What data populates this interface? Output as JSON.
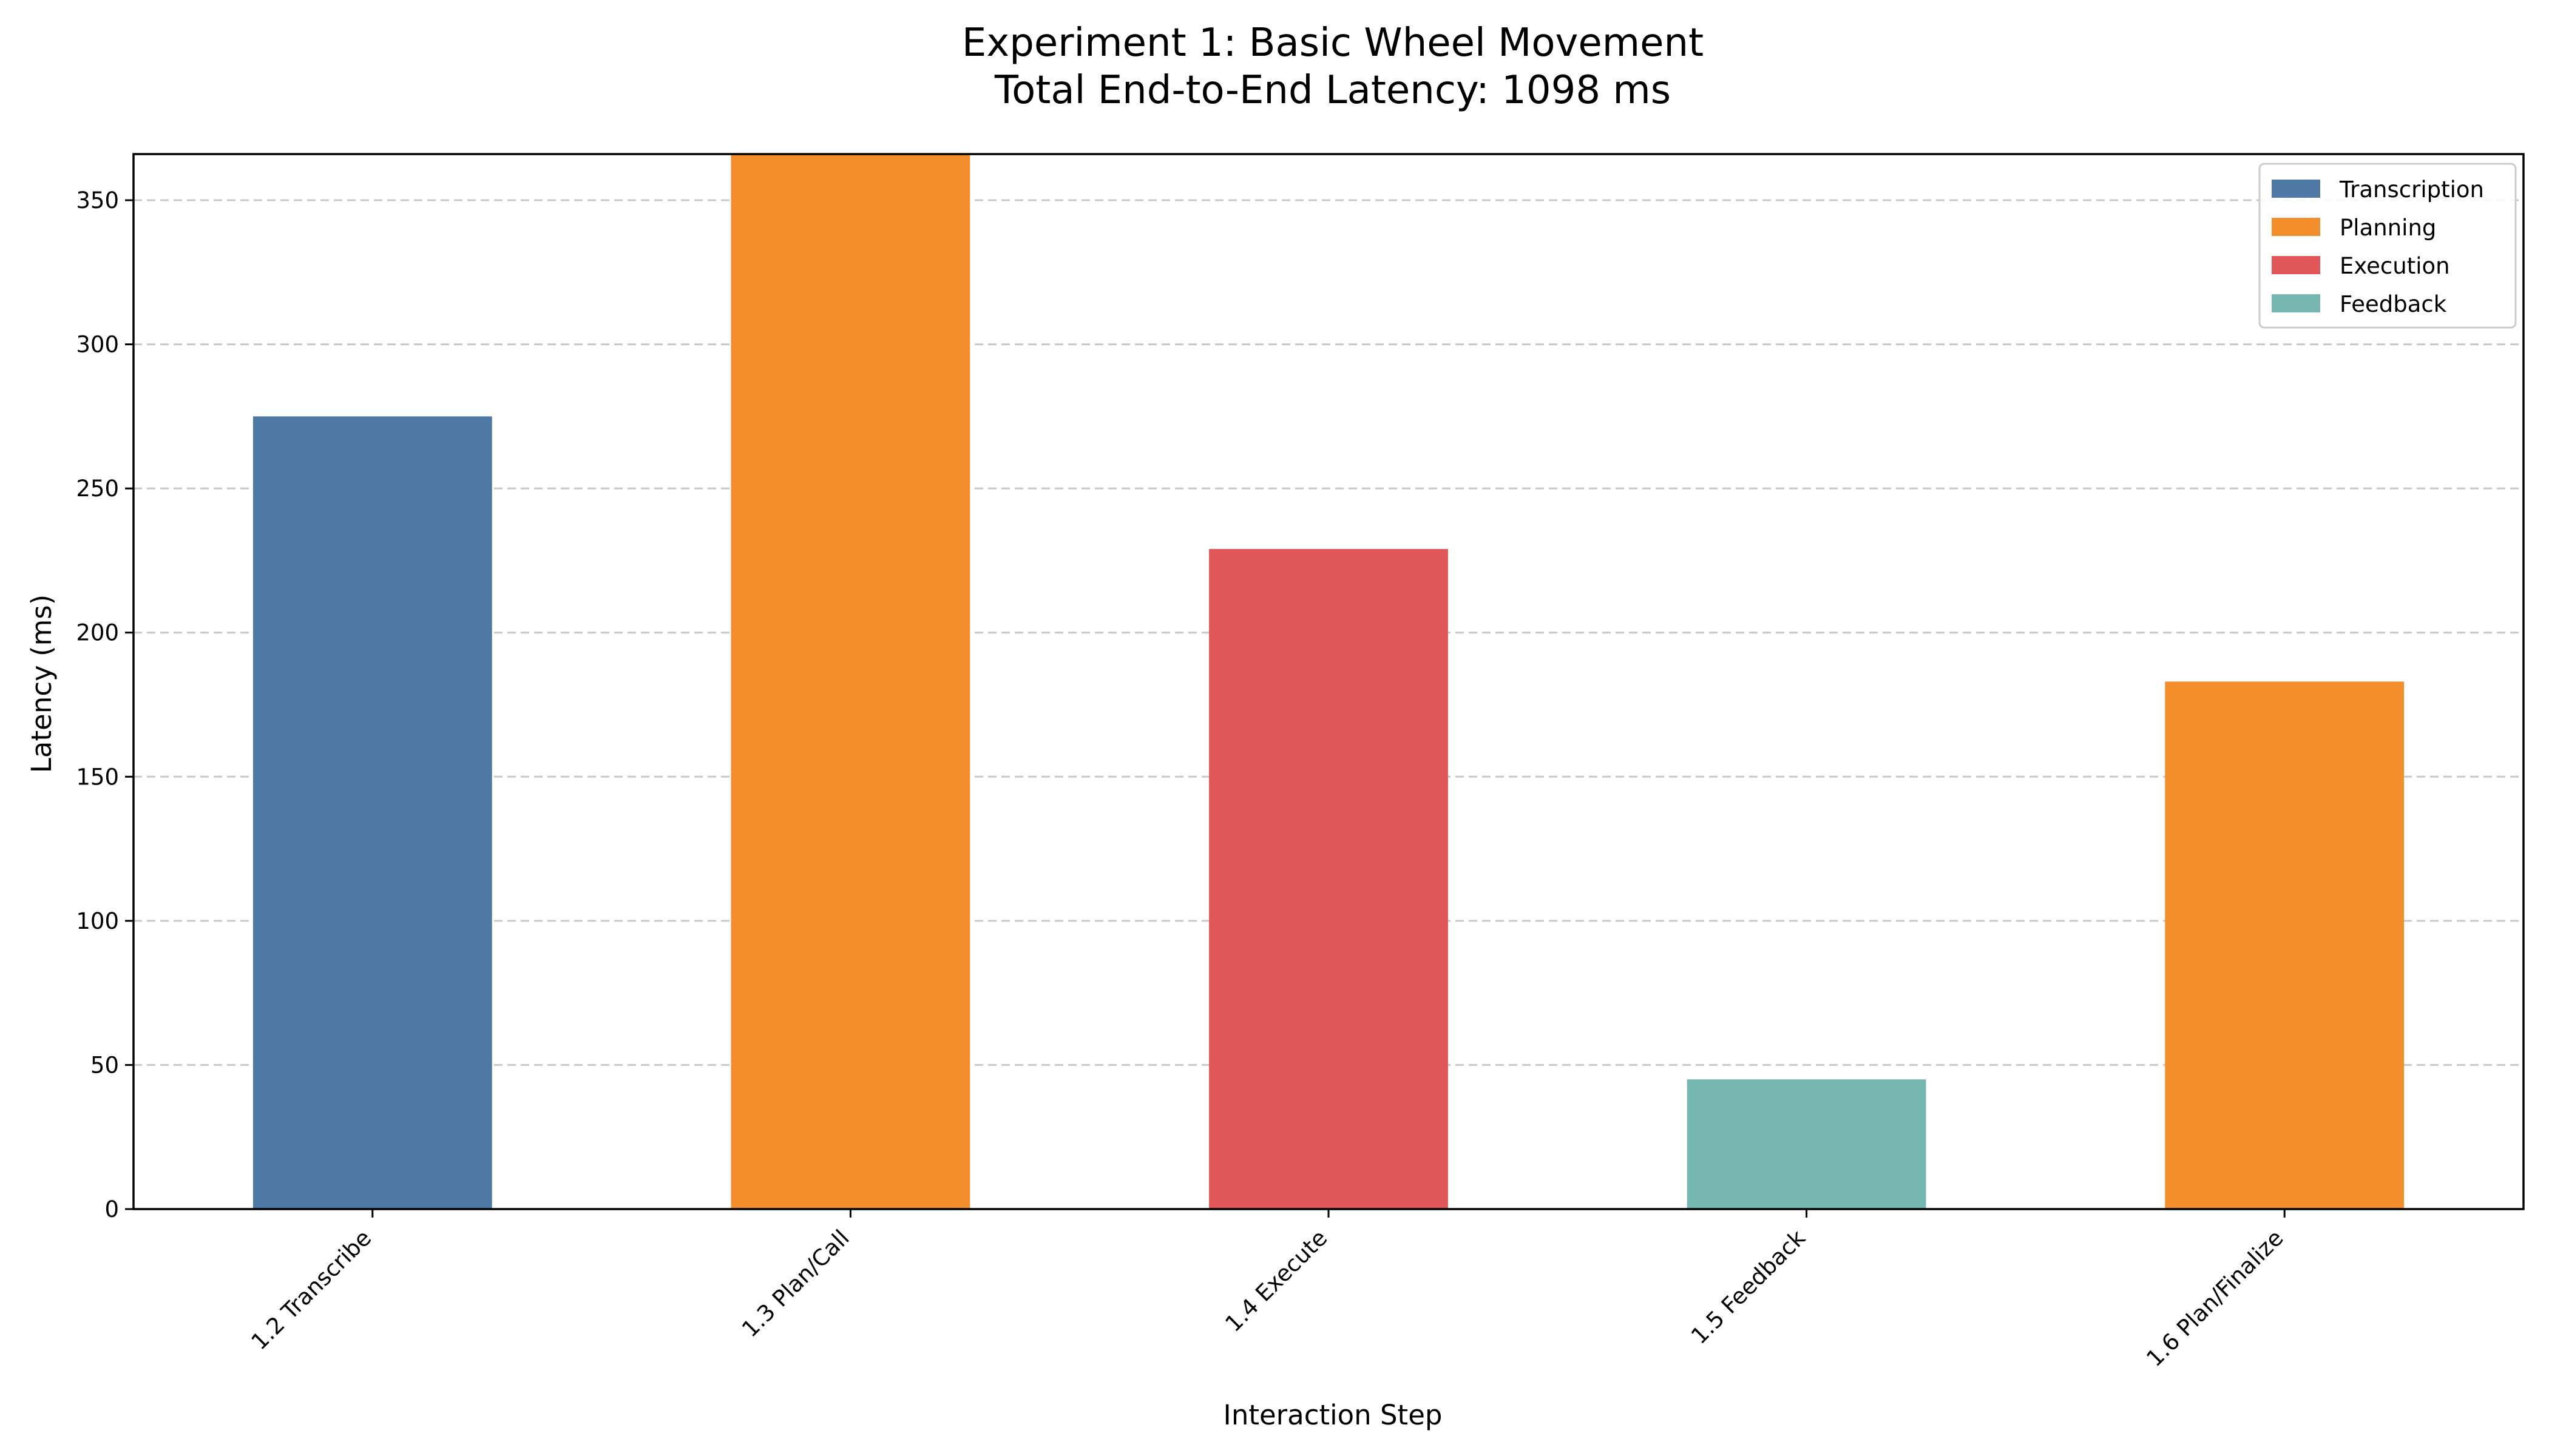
{
  "chart_data": {
    "type": "bar",
    "title": "Experiment 1: Basic Wheel Movement",
    "subtitle": "Total End-to-End Latency: 1098 ms",
    "xlabel": "Interaction Step",
    "ylabel": "Latency (ms)",
    "ylim": [
      0,
      366
    ],
    "yticks": [
      0,
      50,
      100,
      150,
      200,
      250,
      300,
      350
    ],
    "grid": true,
    "legend_position": "top-right",
    "categories": [
      "1.2 Transcribe",
      "1.3 Plan/Call",
      "1.4 Execute",
      "1.5 Feedback",
      "1.6 Plan/Finalize"
    ],
    "values": [
      275,
      366,
      229,
      45,
      183
    ],
    "bar_types": [
      "Transcription",
      "Planning",
      "Execution",
      "Feedback",
      "Planning"
    ],
    "legend": [
      {
        "name": "Transcription",
        "color": "#4e79a7"
      },
      {
        "name": "Planning",
        "color": "#f28e2b"
      },
      {
        "name": "Execution",
        "color": "#e15759"
      },
      {
        "name": "Feedback",
        "color": "#76b7b2"
      }
    ]
  }
}
